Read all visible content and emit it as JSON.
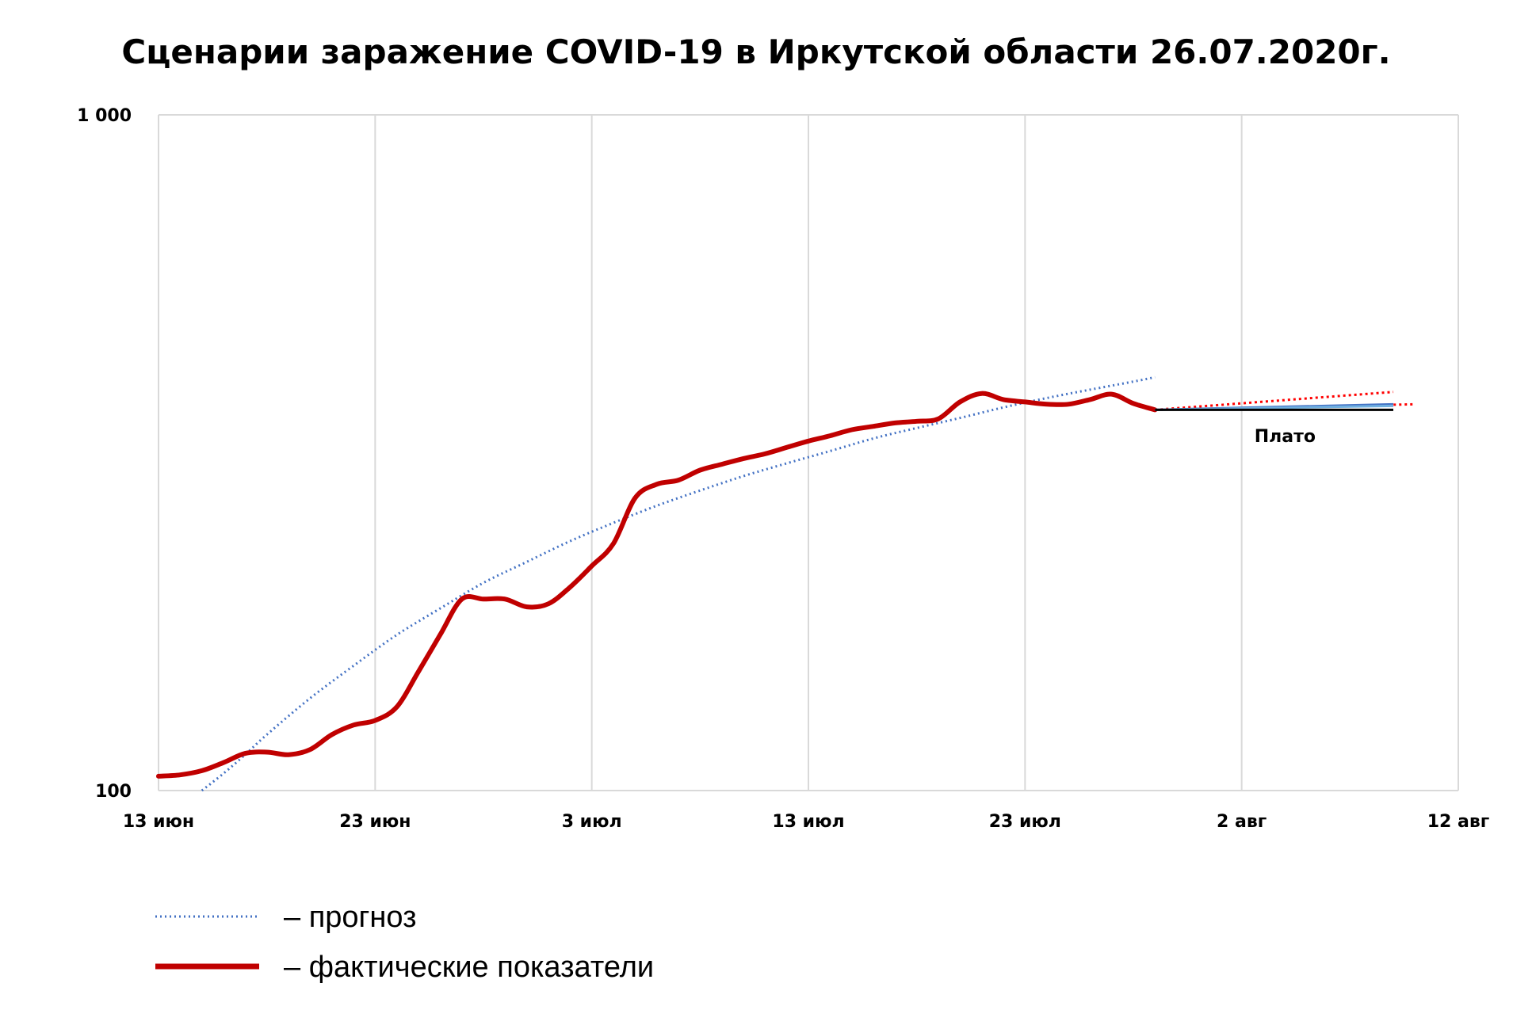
{
  "chart_data": {
    "type": "line",
    "title": "Сценарии заражение COVID-19 в Иркутской области  26.07.2020г.",
    "xlabel": "",
    "ylabel": "",
    "y_scale": "log",
    "ylim": [
      100,
      1000
    ],
    "xlim": [
      "2020-06-13",
      "2020-08-12"
    ],
    "y_ticks": [
      {
        "value": 100,
        "label": "100"
      },
      {
        "value": 1000,
        "label": "1 000"
      }
    ],
    "x_ticks": [
      {
        "date": "2020-06-13",
        "label": "13 июн"
      },
      {
        "date": "2020-06-23",
        "label": "23 июн"
      },
      {
        "date": "2020-07-03",
        "label": "3 июл"
      },
      {
        "date": "2020-07-13",
        "label": "13 июл"
      },
      {
        "date": "2020-07-23",
        "label": "23 июл"
      },
      {
        "date": "2020-08-02",
        "label": "2 авг"
      },
      {
        "date": "2020-08-12",
        "label": "12 авг"
      }
    ],
    "grid": "vertical",
    "legend_position": "bottom-left",
    "series": [
      {
        "name": "– фактические показатели",
        "style": "solid-thick",
        "color": "#c00000",
        "points": [
          [
            "2020-06-13",
            105
          ],
          [
            "2020-06-14",
            105.5
          ],
          [
            "2020-06-15",
            107
          ],
          [
            "2020-06-16",
            110
          ],
          [
            "2020-06-17",
            113.5
          ],
          [
            "2020-06-18",
            114
          ],
          [
            "2020-06-19",
            113
          ],
          [
            "2020-06-20",
            115
          ],
          [
            "2020-06-21",
            121
          ],
          [
            "2020-06-22",
            125
          ],
          [
            "2020-06-23",
            127
          ],
          [
            "2020-06-24",
            133
          ],
          [
            "2020-06-25",
            150
          ],
          [
            "2020-06-26",
            170
          ],
          [
            "2020-06-27",
            192
          ],
          [
            "2020-06-28",
            192
          ],
          [
            "2020-06-29",
            192
          ],
          [
            "2020-06-30",
            187
          ],
          [
            "2020-07-01",
            189
          ],
          [
            "2020-07-02",
            200
          ],
          [
            "2020-07-03",
            215
          ],
          [
            "2020-07-04",
            232
          ],
          [
            "2020-07-05",
            271
          ],
          [
            "2020-07-06",
            284
          ],
          [
            "2020-07-07",
            288
          ],
          [
            "2020-07-08",
            298
          ],
          [
            "2020-07-09",
            304
          ],
          [
            "2020-07-10",
            310
          ],
          [
            "2020-07-11",
            315
          ],
          [
            "2020-07-12",
            322
          ],
          [
            "2020-07-13",
            329
          ],
          [
            "2020-07-14",
            335
          ],
          [
            "2020-07-15",
            342
          ],
          [
            "2020-07-16",
            346
          ],
          [
            "2020-07-17",
            350
          ],
          [
            "2020-07-18",
            352
          ],
          [
            "2020-07-19",
            355
          ],
          [
            "2020-07-20",
            376
          ],
          [
            "2020-07-21",
            387
          ],
          [
            "2020-07-22",
            379
          ],
          [
            "2020-07-23",
            376
          ],
          [
            "2020-07-24",
            373
          ],
          [
            "2020-07-25",
            373
          ],
          [
            "2020-07-26",
            379
          ],
          [
            "2020-07-27",
            386
          ],
          [
            "2020-07-28",
            374
          ],
          [
            "2020-07-29",
            366
          ]
        ]
      },
      {
        "name": "– прогноз",
        "style": "dotted",
        "color": "#4472c4",
        "points": [
          [
            "2020-06-15",
            100
          ],
          [
            "2020-06-16",
            106
          ],
          [
            "2020-06-17",
            113
          ],
          [
            "2020-06-18",
            121
          ],
          [
            "2020-06-20",
            137
          ],
          [
            "2020-06-22",
            153
          ],
          [
            "2020-06-24",
            170
          ],
          [
            "2020-06-26",
            186
          ],
          [
            "2020-06-28",
            203
          ],
          [
            "2020-06-30",
            218
          ],
          [
            "2020-07-02",
            234
          ],
          [
            "2020-07-04",
            249
          ],
          [
            "2020-07-06",
            264
          ],
          [
            "2020-07-08",
            278
          ],
          [
            "2020-07-10",
            292
          ],
          [
            "2020-07-12",
            305
          ],
          [
            "2020-07-14",
            318
          ],
          [
            "2020-07-16",
            332
          ],
          [
            "2020-07-18",
            344
          ],
          [
            "2020-07-20",
            356
          ],
          [
            "2020-07-22",
            369
          ],
          [
            "2020-07-24",
            381
          ],
          [
            "2020-07-26",
            392
          ],
          [
            "2020-07-28",
            403
          ],
          [
            "2020-07-29",
            409
          ]
        ]
      }
    ],
    "scenario_lines": [
      {
        "color": "#ff0000",
        "style": "dotted",
        "start": [
          "2020-07-29",
          366
        ],
        "end": [
          "2020-08-09",
          389
        ]
      },
      {
        "color": "#ff0000",
        "style": "dotted",
        "start": [
          "2020-07-29",
          366
        ],
        "end": [
          "2020-08-10",
          373
        ]
      },
      {
        "color": "#4472c4",
        "style": "solid",
        "start": [
          "2020-07-29",
          366
        ],
        "end": [
          "2020-08-09",
          373
        ]
      },
      {
        "color": "#70b0e0",
        "style": "solid",
        "start": [
          "2020-07-29",
          366
        ],
        "end": [
          "2020-08-09",
          371
        ]
      },
      {
        "color": "#000000",
        "style": "solid",
        "start": [
          "2020-07-29",
          366
        ],
        "end": [
          "2020-08-09",
          366
        ]
      }
    ],
    "annotations": [
      {
        "text": "Плато",
        "date": "2020-08-04",
        "value": 335
      }
    ]
  }
}
